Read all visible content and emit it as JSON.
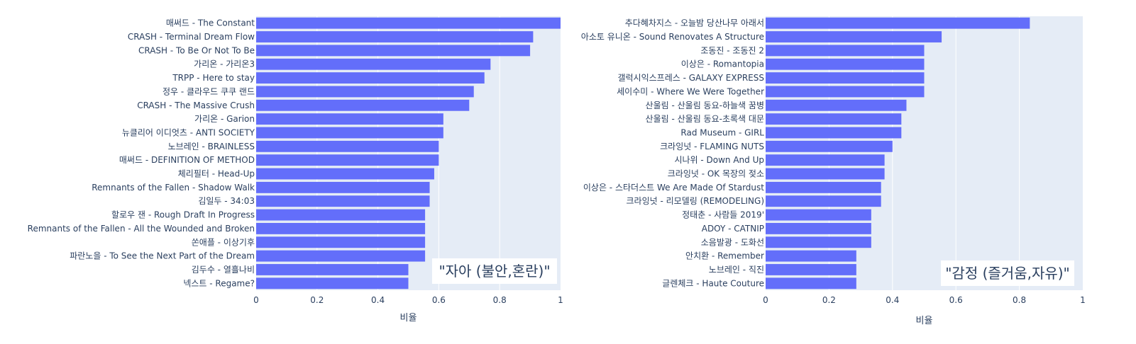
{
  "chart_data": [
    {
      "type": "bar",
      "orientation": "horizontal",
      "annotation": "\"자아 (불안,혼란)\"",
      "xlabel": "비율",
      "xlim": [
        0,
        1
      ],
      "xticks": [
        "0",
        "0.2",
        "0.4",
        "0.6",
        "0.8",
        "1"
      ],
      "grid": true,
      "bar_color": "#636efa",
      "plot_bg": "#e5ecf6",
      "categories": [
        "매써드 - The Constant",
        "CRASH - Terminal Dream Flow",
        "CRASH - To Be Or Not To Be",
        "가리온 - 가리온3",
        "TRPP - Here to stay",
        "정우 - 클라우드 쿠쿠 랜드",
        "CRASH - The Massive Crush",
        "가리온 - Garion",
        "뉴클리어 이디엇츠 - ANTI SOCIETY",
        "노브레인 - BRAINLESS",
        "매써드 - DEFINITION OF METHOD",
        "체리필터 - Head-Up",
        "Remnants of the Fallen - Shadow Walk",
        "김일두 - 34:03",
        "할로우 잰 - Rough Draft In Progress",
        "Remnants of the Fallen - All the Wounded and Broken",
        "쏜애플 - 이상기후",
        "파란노을 - To See the Next Part of the Dream",
        "김두수 - 열흘나비",
        "넥스트 - Regame?"
      ],
      "values": [
        1.0,
        0.91,
        0.9,
        0.77,
        0.75,
        0.715,
        0.7,
        0.615,
        0.615,
        0.6,
        0.6,
        0.585,
        0.57,
        0.57,
        0.555,
        0.555,
        0.555,
        0.555,
        0.5,
        0.5
      ]
    },
    {
      "type": "bar",
      "orientation": "horizontal",
      "annotation": "\"감정 (즐거움,자유)\"",
      "xlabel": "비율",
      "xlim": [
        0,
        1
      ],
      "xticks": [
        "0",
        "0.2",
        "0.4",
        "0.6",
        "0.8",
        "1"
      ],
      "grid": true,
      "bar_color": "#636efa",
      "plot_bg": "#e5ecf6",
      "categories": [
        "추다혜차지스 - 오늘밤 당산나무 아래서",
        "아소토 유니온 - Sound Renovates A Structure",
        "조동진 - 조동진 2",
        "이상은 - Romantopia",
        "갤럭시익스프레스 - GALAXY EXPRESS",
        "세이수미 - Where We Were Together",
        "산울림 - 산울림 동요-하늘색 꿈병",
        "산울림 - 산울림 동요-초록색 대문",
        "Rad Museum - GIRL",
        "크라잉넛 - FLAMING NUTS",
        "시나위 - Down And Up",
        "크라잉넛 - OK 목장의 젖소",
        "이상은 - 스타더스트 We Are Made Of Stardust",
        "크라잉넛 - 리모델링 (REMODELING)",
        "정태춘 - 사람들 2019'",
        "ADOY - CATNIP",
        "소음발광 - 도화선",
        "안치환 - Remember",
        "노브레인 - 직진",
        "글렌체크 - Haute Couture"
      ],
      "values": [
        0.833,
        0.555,
        0.5,
        0.5,
        0.5,
        0.5,
        0.444,
        0.428,
        0.428,
        0.4,
        0.375,
        0.375,
        0.364,
        0.364,
        0.333,
        0.333,
        0.333,
        0.286,
        0.286,
        0.286
      ]
    }
  ]
}
